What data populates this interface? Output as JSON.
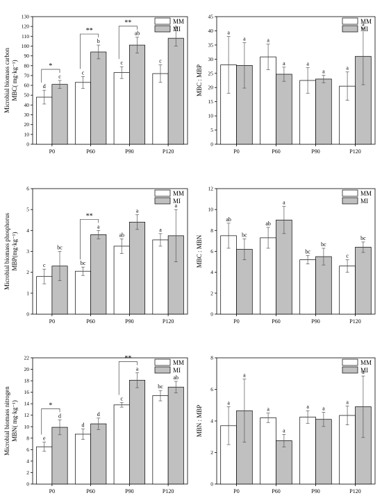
{
  "legend": {
    "entries": [
      "MM",
      "MI"
    ],
    "placement": "top-right"
  },
  "colors": {
    "MM": "#ffffff",
    "MI": "#c0c0c0",
    "stroke": "#000000"
  },
  "chart_data": [
    {
      "type": "bar",
      "title": "",
      "ylabel": "Microbial biomass carbon\nMBC( mg·kg⁻¹)",
      "categories": [
        "P0",
        "P60",
        "P90",
        "P120"
      ],
      "ylim": [
        0,
        130
      ],
      "yticks": [
        0,
        10,
        20,
        30,
        40,
        50,
        60,
        70,
        80,
        90,
        100,
        110,
        120,
        130
      ],
      "series": [
        {
          "name": "MM",
          "values": [
            48,
            63,
            73,
            72
          ],
          "errors": [
            7,
            6,
            6,
            9
          ],
          "letters": [
            "d",
            "c",
            "c",
            "c"
          ]
        },
        {
          "name": "MI",
          "values": [
            61,
            94,
            101,
            108
          ],
          "errors": [
            4,
            7,
            8,
            8
          ],
          "letters": [
            "c",
            "b",
            "ab",
            "a"
          ]
        }
      ],
      "significance": [
        {
          "category": "P0",
          "label": "*"
        },
        {
          "category": "P60",
          "label": "**"
        },
        {
          "category": "P90",
          "label": "**"
        }
      ]
    },
    {
      "type": "bar",
      "title": "",
      "ylabel": "MBC : MBP",
      "categories": [
        "P0",
        "P60",
        "P90",
        "P120"
      ],
      "ylim": [
        0,
        45
      ],
      "yticks": [
        0,
        5,
        10,
        15,
        20,
        25,
        30,
        35,
        40,
        45
      ],
      "series": [
        {
          "name": "MM",
          "values": [
            28,
            30.8,
            22.5,
            20.5
          ],
          "errors": [
            10,
            4.5,
            4.5,
            5
          ],
          "letters": [
            "a",
            "a",
            "a",
            "a"
          ]
        },
        {
          "name": "MI",
          "values": [
            27.8,
            24.7,
            23,
            31
          ],
          "errors": [
            8,
            2.5,
            1.3,
            10
          ],
          "letters": [
            "a",
            "a",
            "a",
            "a"
          ]
        }
      ],
      "significance": []
    },
    {
      "type": "bar",
      "title": "",
      "ylabel": "Microbial biomass phosphorus\nMBP(mg·kg⁻¹)",
      "categories": [
        "P0",
        "P60",
        "P90",
        "P120"
      ],
      "ylim": [
        0,
        6
      ],
      "yticks": [
        0,
        1,
        2,
        3,
        4,
        5,
        6
      ],
      "series": [
        {
          "name": "MM",
          "values": [
            1.8,
            2.05,
            3.25,
            3.55
          ],
          "errors": [
            0.35,
            0.2,
            0.35,
            0.3
          ],
          "letters": [
            "c",
            "bc",
            "ab",
            "a"
          ]
        },
        {
          "name": "MI",
          "values": [
            2.3,
            3.8,
            4.4,
            3.75
          ],
          "errors": [
            0.7,
            0.2,
            0.35,
            1.25
          ],
          "letters": [
            "bc",
            "a",
            "a",
            "a"
          ]
        }
      ],
      "significance": [
        {
          "category": "P60",
          "label": "**"
        }
      ]
    },
    {
      "type": "bar",
      "title": "",
      "ylabel": "MBC : MBN",
      "categories": [
        "P0",
        "P60",
        "P90",
        "P120"
      ],
      "ylim": [
        0,
        12
      ],
      "yticks": [
        0,
        2,
        4,
        6,
        8,
        10,
        12
      ],
      "series": [
        {
          "name": "MM",
          "values": [
            7.5,
            7.3,
            5.2,
            4.6
          ],
          "errors": [
            1.2,
            1.0,
            0.4,
            0.6
          ],
          "letters": [
            "ab",
            "ab",
            "bc",
            "c"
          ]
        },
        {
          "name": "MI",
          "values": [
            6.2,
            9.0,
            5.5,
            6.4
          ],
          "errors": [
            1.0,
            1.3,
            0.8,
            0.5
          ],
          "letters": [
            "bc",
            "a",
            "bc",
            "bc"
          ]
        }
      ],
      "significance": []
    },
    {
      "type": "bar",
      "title": "",
      "ylabel": "Microbial biomass nitrogen\nMBN( mg·kg⁻¹)",
      "categories": [
        "P0",
        "P60",
        "P90",
        "P120"
      ],
      "ylim": [
        0,
        22
      ],
      "yticks": [
        0,
        2,
        4,
        6,
        8,
        10,
        12,
        14,
        16,
        18,
        20,
        22
      ],
      "series": [
        {
          "name": "MM",
          "values": [
            6.5,
            8.7,
            13.8,
            15.4
          ],
          "errors": [
            0.8,
            0.9,
            0.4,
            0.9
          ],
          "letters": [
            "e",
            "d",
            "c",
            "bc"
          ]
        },
        {
          "name": "MI",
          "values": [
            9.9,
            10.5,
            18.1,
            16.9
          ],
          "errors": [
            1.3,
            1.0,
            1.3,
            1.0
          ],
          "letters": [
            "d",
            "d",
            "a",
            "ab"
          ]
        }
      ],
      "significance": [
        {
          "category": "P0",
          "label": "*"
        },
        {
          "category": "P90",
          "label": "**"
        }
      ]
    },
    {
      "type": "bar",
      "title": "",
      "ylabel": "MBN : MBP",
      "categories": [
        "P0",
        "P60",
        "P90",
        "P120"
      ],
      "ylim": [
        0,
        8
      ],
      "yticks": [
        0,
        2,
        4,
        6,
        8
      ],
      "series": [
        {
          "name": "MM",
          "values": [
            3.7,
            4.2,
            4.25,
            4.35
          ],
          "errors": [
            1.2,
            0.3,
            0.4,
            0.6
          ],
          "letters": [
            "a",
            "a",
            "a",
            "a"
          ]
        },
        {
          "name": "MI",
          "values": [
            4.65,
            2.75,
            4.1,
            4.9
          ],
          "errors": [
            2.0,
            0.4,
            0.45,
            1.95
          ],
          "letters": [
            "a",
            "a",
            "a",
            "a"
          ]
        }
      ],
      "significance": []
    }
  ]
}
